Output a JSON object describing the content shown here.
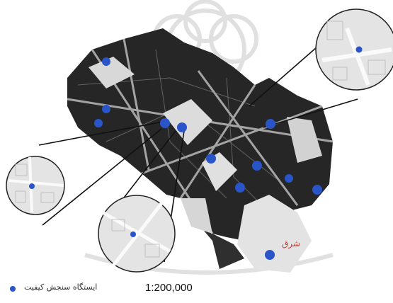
{
  "map": {
    "scale_text": "1:200,000",
    "legend": {
      "label": "ایستگاه سنجش کیفیت",
      "marker_color": "#2a55c9"
    },
    "colors": {
      "city": "#262626",
      "roads": "#d9d9d9",
      "open_area": "#e3e3e3",
      "station": "#2a55c9",
      "label": "#d8332a",
      "watermark": "#cfcfcf"
    },
    "stations": [
      {
        "label": ""
      },
      {
        "label": ""
      },
      {
        "label": ""
      },
      {
        "label": ""
      },
      {
        "label": ""
      },
      {
        "label": ""
      },
      {
        "label": ""
      },
      {
        "label": ""
      },
      {
        "label": ""
      },
      {
        "label": ""
      },
      {
        "label": ""
      },
      {
        "label": "شرق"
      }
    ],
    "insets": [
      {
        "label": ""
      },
      {
        "label": ""
      },
      {
        "label": ""
      }
    ]
  }
}
